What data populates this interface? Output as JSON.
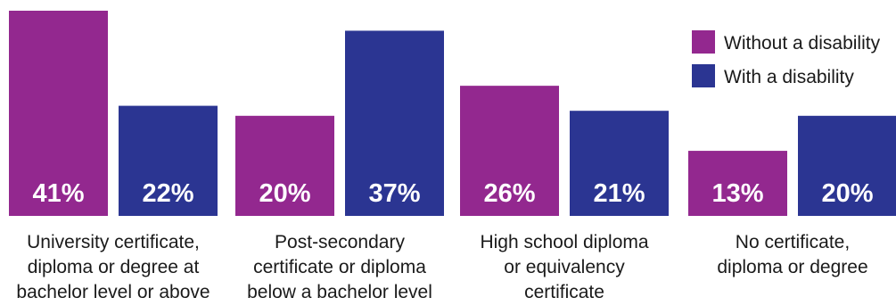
{
  "chart_data": {
    "type": "bar",
    "categories": [
      "University certificate, diploma or degree at bachelor level or above",
      "Post-secondary certificate or diploma below a bachelor level",
      "High school diploma or equivalency certificate",
      "No certificate, diploma or degree"
    ],
    "category_lines": [
      [
        "University certificate,",
        "diploma or degree at",
        "bachelor level or above"
      ],
      [
        "Post-secondary",
        "certificate or diploma",
        "below a bachelor level"
      ],
      [
        "High school diploma",
        "or equivalency",
        "certificate"
      ],
      [
        "No certificate,",
        "diploma or degree"
      ]
    ],
    "series": [
      {
        "name": "Without a disability",
        "color": "#93288f",
        "values": [
          41,
          20,
          26,
          13
        ],
        "labels": [
          "41%",
          "20%",
          "26%",
          "13%"
        ]
      },
      {
        "name": "With a disability",
        "color": "#2b3592",
        "values": [
          22,
          37,
          21,
          20
        ],
        "labels": [
          "22%",
          "37%",
          "21%",
          "20%"
        ]
      }
    ],
    "ylim": [
      0,
      41
    ],
    "legend": "top-right",
    "grid": false,
    "title": "",
    "xlabel": "",
    "ylabel": ""
  }
}
